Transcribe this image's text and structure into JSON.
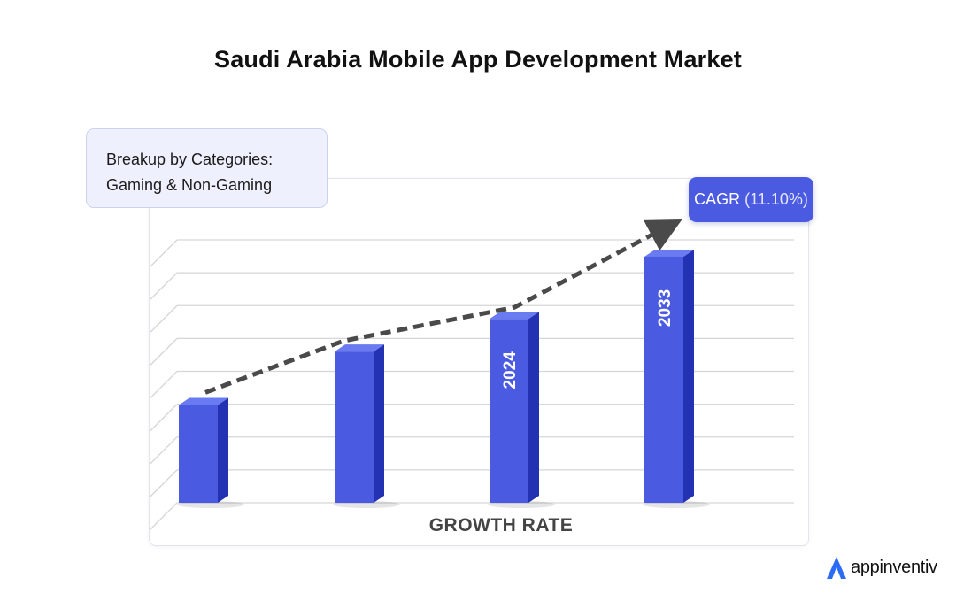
{
  "header": {
    "title": "Saudi Arabia Mobile App Development Market"
  },
  "legend": {
    "line1": "Breakup by Categories:",
    "line2": "Gaming & Non-Gaming"
  },
  "badge": {
    "label": "CAGR",
    "value": "(11.10%)"
  },
  "brand": {
    "name": "appinventiv"
  },
  "colors": {
    "bar_front": "#4a5be2",
    "bar_side": "#2331b3",
    "bar_top": "#6a7af0",
    "trend": "#4a4a4a",
    "grid": "#d6d6d6",
    "logo_accent": "#2a6cf6"
  },
  "chart_data": {
    "type": "bar",
    "categories": [
      "",
      "",
      "2024",
      "2033"
    ],
    "values": [
      33,
      51,
      62,
      83
    ],
    "xlabel": "GROWTH RATE",
    "ylabel": "",
    "ylim": [
      0,
      100
    ],
    "grid": true,
    "trend_line": "dashed-arrow",
    "bar_style": "3d"
  }
}
